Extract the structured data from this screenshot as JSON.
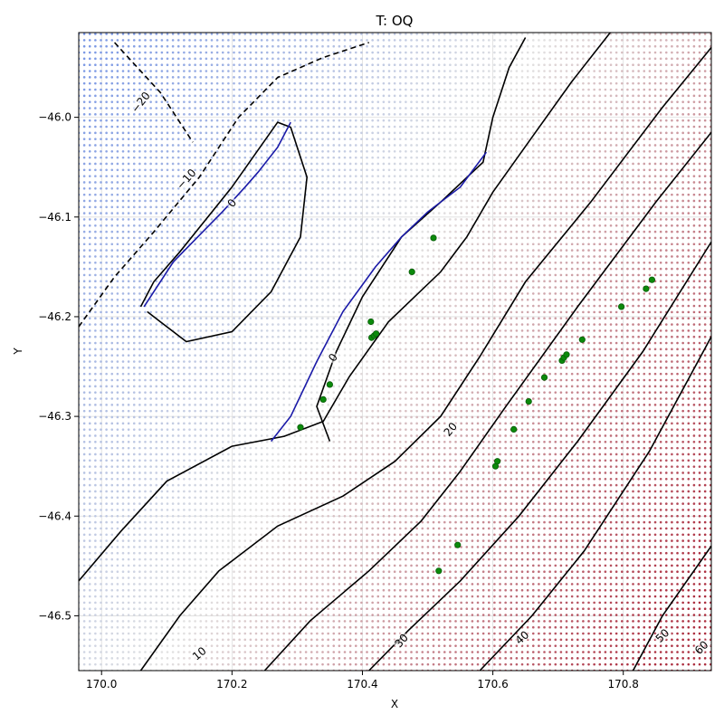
{
  "chart_data": {
    "type": "contour",
    "title": "T: OQ",
    "xlabel": "X",
    "ylabel": "Y",
    "xlim": [
      169.965,
      170.935
    ],
    "ylim": [
      -46.555,
      -45.915
    ],
    "x_ticks": [
      {
        "value": 170.0,
        "label": "170.0"
      },
      {
        "value": 170.2,
        "label": "170.2"
      },
      {
        "value": 170.4,
        "label": "170.4"
      },
      {
        "value": 170.6,
        "label": "170.6"
      },
      {
        "value": 170.8,
        "label": "170.8"
      }
    ],
    "y_ticks": [
      {
        "value": -46.0,
        "label": "−46.0"
      },
      {
        "value": -46.1,
        "label": "−46.1"
      },
      {
        "value": -46.2,
        "label": "−46.2"
      },
      {
        "value": -46.3,
        "label": "−46.3"
      },
      {
        "value": -46.4,
        "label": "−46.4"
      },
      {
        "value": -46.5,
        "label": "−46.5"
      }
    ],
    "grid": true,
    "background_field": {
      "colormap": "coolwarm",
      "color_low": "#5a7fe0",
      "color_mid": "#dddddd",
      "color_high": "#9e0a1f",
      "value_low": -30,
      "value_high": 65,
      "description_trend": "increases toward lower-right"
    },
    "contour_lines": [
      {
        "level": -20,
        "style": "dashed",
        "points": [
          [
            170.02,
            -45.925
          ],
          [
            170.09,
            -45.975
          ],
          [
            170.14,
            -46.025
          ]
        ]
      },
      {
        "level": -10,
        "style": "dashed",
        "points": [
          [
            169.965,
            -46.21
          ],
          [
            170.02,
            -46.16
          ],
          [
            170.08,
            -46.115
          ],
          [
            170.15,
            -46.06
          ],
          [
            170.21,
            -46.0
          ],
          [
            170.27,
            -45.96
          ],
          [
            170.34,
            -45.94
          ],
          [
            170.41,
            -45.925
          ]
        ]
      },
      {
        "level": 0,
        "style": "solid",
        "points": [
          [
            170.06,
            -46.19
          ],
          [
            170.08,
            -46.165
          ],
          [
            170.12,
            -46.135
          ],
          [
            170.2,
            -46.07
          ],
          [
            170.27,
            -46.005
          ],
          [
            170.29,
            -46.01
          ],
          [
            170.315,
            -46.06
          ],
          [
            170.305,
            -46.12
          ],
          [
            170.26,
            -46.175
          ],
          [
            170.2,
            -46.215
          ],
          [
            170.13,
            -46.225
          ],
          [
            170.09,
            -46.205
          ],
          [
            170.07,
            -46.195
          ]
        ]
      },
      {
        "level": 0,
        "style": "solid",
        "points": [
          [
            170.35,
            -46.325
          ],
          [
            170.33,
            -46.29
          ],
          [
            170.36,
            -46.235
          ],
          [
            170.4,
            -46.18
          ],
          [
            170.46,
            -46.12
          ],
          [
            170.52,
            -46.085
          ],
          [
            170.585,
            -46.045
          ],
          [
            170.6,
            -46.0
          ],
          [
            170.625,
            -45.95
          ],
          [
            170.65,
            -45.92
          ]
        ]
      },
      {
        "level": 10,
        "style": "solid",
        "points": [
          [
            169.965,
            -46.465
          ],
          [
            170.03,
            -46.415
          ],
          [
            170.1,
            -46.365
          ],
          [
            170.2,
            -46.33
          ],
          [
            170.28,
            -46.32
          ],
          [
            170.34,
            -46.305
          ],
          [
            170.38,
            -46.26
          ],
          [
            170.44,
            -46.205
          ],
          [
            170.52,
            -46.155
          ],
          [
            170.56,
            -46.12
          ],
          [
            170.6,
            -46.075
          ],
          [
            170.66,
            -46.02
          ],
          [
            170.72,
            -45.965
          ],
          [
            170.78,
            -45.915
          ]
        ]
      },
      {
        "level": 20,
        "style": "solid",
        "points": [
          [
            170.06,
            -46.555
          ],
          [
            170.12,
            -46.5
          ],
          [
            170.18,
            -46.455
          ],
          [
            170.27,
            -46.41
          ],
          [
            170.37,
            -46.38
          ],
          [
            170.45,
            -46.345
          ],
          [
            170.52,
            -46.3
          ],
          [
            170.58,
            -46.24
          ],
          [
            170.65,
            -46.165
          ],
          [
            170.75,
            -46.085
          ],
          [
            170.86,
            -45.99
          ],
          [
            170.935,
            -45.93
          ]
        ]
      },
      {
        "level": 30,
        "style": "solid",
        "points": [
          [
            170.25,
            -46.555
          ],
          [
            170.32,
            -46.505
          ],
          [
            170.41,
            -46.455
          ],
          [
            170.49,
            -46.405
          ],
          [
            170.55,
            -46.355
          ],
          [
            170.62,
            -46.29
          ],
          [
            170.73,
            -46.19
          ],
          [
            170.85,
            -46.085
          ],
          [
            170.935,
            -46.015
          ]
        ]
      },
      {
        "level": 40,
        "style": "solid",
        "points": [
          [
            170.41,
            -46.555
          ],
          [
            170.47,
            -46.515
          ],
          [
            170.55,
            -46.465
          ],
          [
            170.64,
            -46.4
          ],
          [
            170.73,
            -46.325
          ],
          [
            170.83,
            -46.235
          ],
          [
            170.935,
            -46.125
          ]
        ]
      },
      {
        "level": 50,
        "style": "solid",
        "points": [
          [
            170.58,
            -46.555
          ],
          [
            170.66,
            -46.5
          ],
          [
            170.74,
            -46.435
          ],
          [
            170.84,
            -46.335
          ],
          [
            170.935,
            -46.22
          ]
        ]
      },
      {
        "level": 60,
        "style": "solid",
        "points": [
          [
            170.815,
            -46.555
          ],
          [
            170.86,
            -46.5
          ],
          [
            170.935,
            -46.43
          ]
        ]
      }
    ],
    "blue_trace_lines": [
      [
        [
          170.065,
          -46.19
        ],
        [
          170.09,
          -46.165
        ],
        [
          170.11,
          -46.145
        ],
        [
          170.14,
          -46.125
        ],
        [
          170.185,
          -46.095
        ],
        [
          170.22,
          -46.07
        ],
        [
          170.24,
          -46.055
        ],
        [
          170.27,
          -46.03
        ],
        [
          170.29,
          -46.005
        ]
      ],
      [
        [
          170.26,
          -46.325
        ],
        [
          170.29,
          -46.3
        ],
        [
          170.33,
          -46.245
        ],
        [
          170.37,
          -46.195
        ],
        [
          170.42,
          -46.15
        ],
        [
          170.46,
          -46.12
        ],
        [
          170.5,
          -46.095
        ],
        [
          170.55,
          -46.07
        ],
        [
          170.59,
          -46.035
        ]
      ]
    ],
    "contour_labels": [
      {
        "text": "−20",
        "x": 170.06,
        "y": -45.985,
        "angle": -52
      },
      {
        "text": "−10",
        "x": 170.13,
        "y": -46.062,
        "angle": -48
      },
      {
        "text": "0",
        "x": 170.2,
        "y": -46.086,
        "angle": -52
      },
      {
        "text": "0",
        "x": 170.355,
        "y": -46.241,
        "angle": -55
      },
      {
        "text": "20",
        "x": 170.535,
        "y": -46.313,
        "angle": -50
      },
      {
        "text": "10",
        "x": 170.15,
        "y": -46.538,
        "angle": -40
      },
      {
        "text": "30",
        "x": 170.46,
        "y": -46.525,
        "angle": -48
      },
      {
        "text": "40",
        "x": 170.645,
        "y": -46.522,
        "angle": -42
      },
      {
        "text": "50",
        "x": 170.86,
        "y": -46.52,
        "angle": -45
      },
      {
        "text": "60",
        "x": 170.92,
        "y": -46.532,
        "angle": -45
      }
    ],
    "points": {
      "color": "#0b8a0b",
      "data": [
        [
          170.305,
          -46.311
        ],
        [
          170.34,
          -46.283
        ],
        [
          170.35,
          -46.268
        ],
        [
          170.413,
          -46.205
        ],
        [
          170.414,
          -46.221
        ],
        [
          170.418,
          -46.219
        ],
        [
          170.421,
          -46.217
        ],
        [
          170.476,
          -46.155
        ],
        [
          170.509,
          -46.121
        ],
        [
          170.517,
          -46.455
        ],
        [
          170.546,
          -46.429
        ],
        [
          170.604,
          -46.35
        ],
        [
          170.607,
          -46.345
        ],
        [
          170.632,
          -46.313
        ],
        [
          170.655,
          -46.285
        ],
        [
          170.679,
          -46.261
        ],
        [
          170.706,
          -46.244
        ],
        [
          170.709,
          -46.241
        ],
        [
          170.713,
          -46.238
        ],
        [
          170.737,
          -46.223
        ],
        [
          170.797,
          -46.19
        ],
        [
          170.835,
          -46.172
        ],
        [
          170.844,
          -46.163
        ]
      ]
    }
  }
}
